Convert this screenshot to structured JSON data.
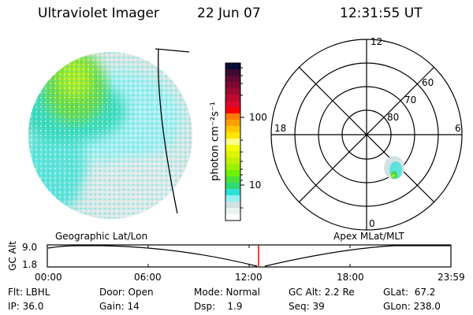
{
  "header": {
    "instrument": "Ultraviolet Imager",
    "date": "22 Jun 07",
    "time": "12:31:55 UT"
  },
  "colorbar": {
    "label": "photon cm⁻²s⁻¹",
    "ticks": [
      "100",
      "10"
    ],
    "colors": [
      "#0b0b38",
      "#3c0a32",
      "#5e0a33",
      "#7e0a33",
      "#9c0a30",
      "#bb0a30",
      "#d80a30",
      "#ff0000",
      "#ff7a00",
      "#ffa000",
      "#ffc800",
      "#ffe600",
      "#ffff88",
      "#f2ff00",
      "#dcf500",
      "#c0f000",
      "#9cf000",
      "#6ef000",
      "#48e23a",
      "#2ed872",
      "#2ee0d8",
      "#96f0f4",
      "#d2e2e2",
      "#e8f4ef",
      "#ffffff"
    ]
  },
  "polar": {
    "labels": {
      "top": "12",
      "bottom": "0",
      "left": "18",
      "right": "6"
    },
    "lat_labels": [
      "80",
      "70",
      "60"
    ]
  },
  "timeline": {
    "left_title": "Geographic Lat/Lon",
    "right_title": "Apex MLat/MLT",
    "y_label": "GC Alt",
    "y_ticks": [
      "9.0",
      "1.8"
    ],
    "x_ticks": [
      "00:00",
      "06:00",
      "12:00",
      "18:00",
      "23:59"
    ],
    "current_marker_color": "#ff0000"
  },
  "info": [
    [
      "Flt: LBHL",
      "IP: 36.0"
    ],
    [
      "Door: Open",
      "Gain: 14"
    ],
    [
      "Mode: Normal",
      "Dsp:    1.9"
    ],
    [
      "GC Alt: 2.2 Re",
      "Seq: 39"
    ],
    [
      "GLat:  67.2",
      "GLon: 238.0"
    ]
  ]
}
